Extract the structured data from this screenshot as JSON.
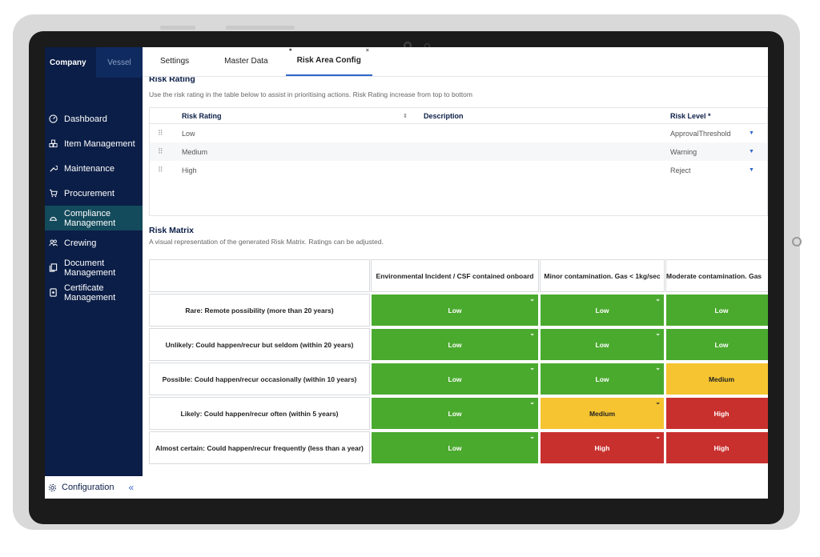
{
  "sidebar": {
    "tabs": [
      "Company",
      "Vessel"
    ],
    "items": [
      {
        "label": "Dashboard",
        "icon": "gauge-icon"
      },
      {
        "label": "Item Management",
        "icon": "cubes-icon"
      },
      {
        "label": "Maintenance",
        "icon": "wrench-icon"
      },
      {
        "label": "Procurement",
        "icon": "cart-icon"
      },
      {
        "label": "Compliance Management",
        "icon": "hardhat-icon",
        "active": true
      },
      {
        "label": "Crewing",
        "icon": "people-icon"
      },
      {
        "label": "Document Management",
        "icon": "documents-icon"
      },
      {
        "label": "Certificate Management",
        "icon": "certificate-icon"
      }
    ],
    "config_label": "Configuration",
    "collapse_glyph": "«"
  },
  "tabs": [
    "Settings",
    "Master Data",
    "Risk Area Config"
  ],
  "risk_rating": {
    "title": "Risk Rating",
    "subtitle": "Use the risk rating in the table below to assist in prioritising actions. Risk Rating increase from top to bottom",
    "columns": [
      "Risk Rating",
      "Description",
      "Risk Level *"
    ],
    "rows": [
      {
        "name": "Low",
        "description": "",
        "level": "ApprovalThreshold"
      },
      {
        "name": "Medium",
        "description": "",
        "level": "Warning"
      },
      {
        "name": "High",
        "description": "",
        "level": "Reject"
      }
    ]
  },
  "risk_matrix": {
    "title": "Risk Matrix",
    "subtitle": "A visual representation of the generated Risk Matrix. Ratings can be adjusted.",
    "columns": [
      "Environmental Incident / CSF contained onboard",
      "Minor contamination. Gas < 1kg/sec",
      "Moderate contamination. Gas"
    ],
    "rows": [
      {
        "label": "Rare: Remote possibility (more than 20 years)",
        "values": [
          "Low",
          "Low",
          "Low"
        ]
      },
      {
        "label": "Unlikely: Could happen/recur but seldom (within 20 years)",
        "values": [
          "Low",
          "Low",
          "Low"
        ]
      },
      {
        "label": "Possible: Could happen/recur occasionally (within 10 years)",
        "values": [
          "Low",
          "Low",
          "Medium"
        ]
      },
      {
        "label": "Likely: Could happen/recur often (within 5 years)",
        "values": [
          "Low",
          "Medium",
          "High"
        ]
      },
      {
        "label": "Almost certain: Could happen/recur frequently (less than a year)",
        "values": [
          "Low",
          "High",
          "High"
        ]
      }
    ]
  },
  "colors": {
    "sidebar": "#0b1e47",
    "active_nav": "#134a5c",
    "low": "#4aaa2e",
    "medium": "#f5c430",
    "high": "#c8302e",
    "accent": "#2d67c9"
  }
}
